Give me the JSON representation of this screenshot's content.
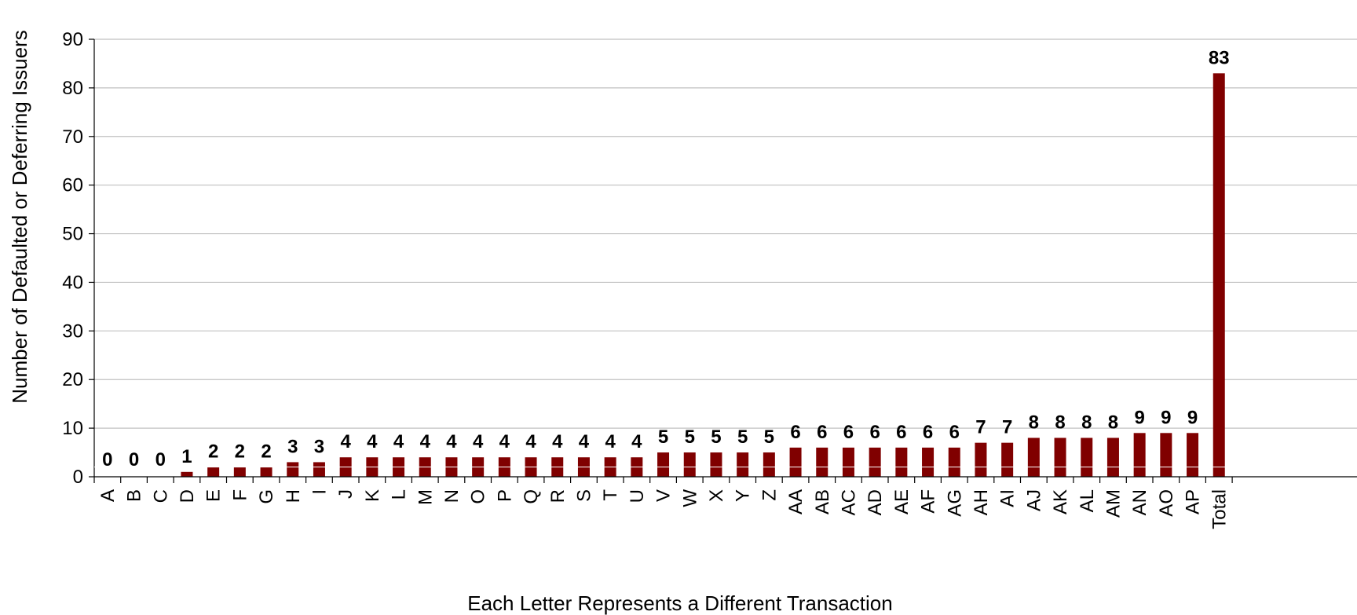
{
  "chart_data": {
    "type": "bar",
    "title": "",
    "xlabel": "Each Letter Represents a Different Transaction",
    "ylabel": "Number of Defaulted or Deferring Issuers",
    "ylim": [
      0,
      90
    ],
    "yticks": [
      0,
      10,
      20,
      30,
      40,
      50,
      60,
      70,
      80,
      90
    ],
    "grid": true,
    "legend": "none",
    "bar_color": "#800000",
    "categories": [
      "A",
      "B",
      "C",
      "D",
      "E",
      "F",
      "G",
      "H",
      "I",
      "J",
      "K",
      "L",
      "M",
      "N",
      "O",
      "P",
      "Q",
      "R",
      "S",
      "T",
      "U",
      "V",
      "W",
      "X",
      "Y",
      "Z",
      "AA",
      "AB",
      "AC",
      "AD",
      "AE",
      "AF",
      "AG",
      "AH",
      "AI",
      "AJ",
      "AK",
      "AL",
      "AM",
      "AN",
      "AO",
      "AP",
      "Total"
    ],
    "values": [
      0,
      0,
      0,
      1,
      2,
      2,
      2,
      3,
      3,
      4,
      4,
      4,
      4,
      4,
      4,
      4,
      4,
      4,
      4,
      4,
      4,
      5,
      5,
      5,
      5,
      5,
      6,
      6,
      6,
      6,
      6,
      6,
      6,
      7,
      7,
      8,
      8,
      8,
      8,
      9,
      9,
      9,
      83
    ]
  }
}
